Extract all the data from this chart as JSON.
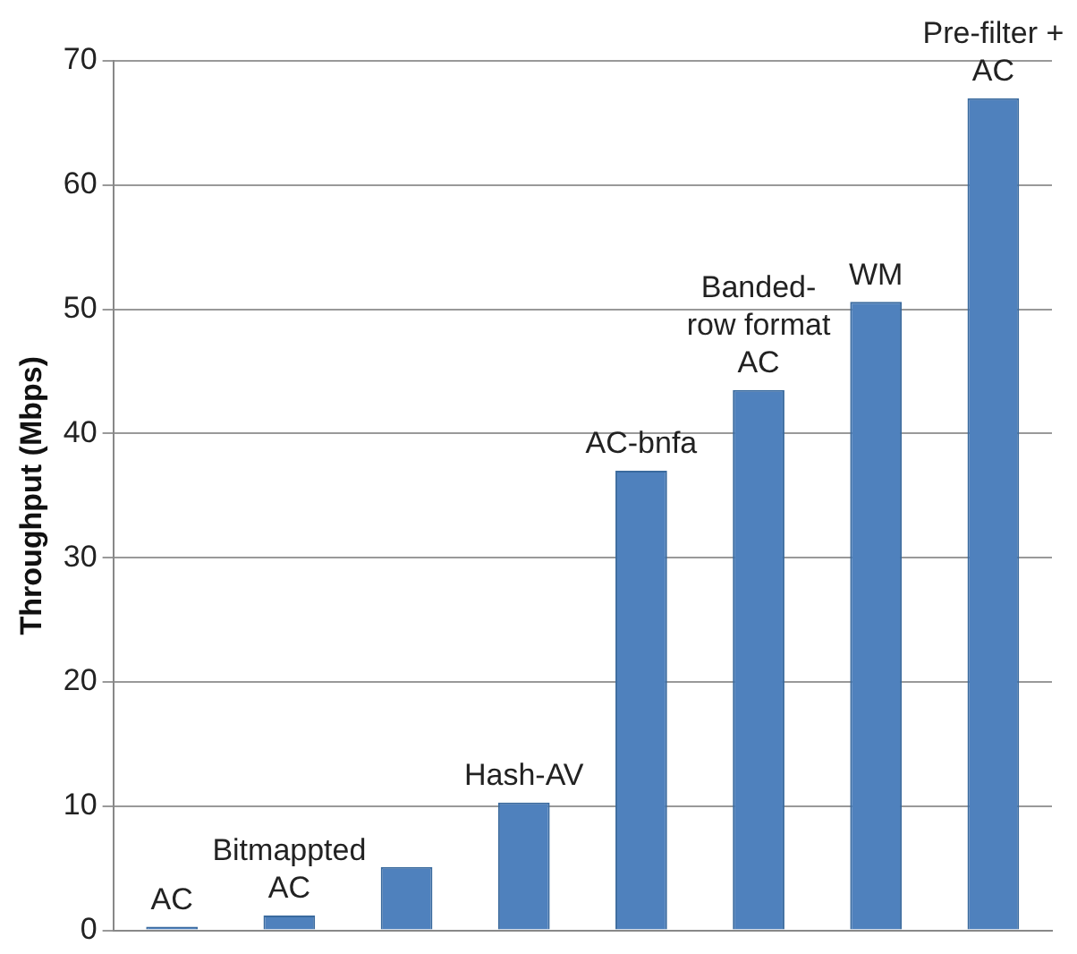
{
  "chart_data": {
    "type": "bar",
    "ylabel": "Throughput (Mbps)",
    "categories": [
      "AC",
      "Bitmappted AC",
      null,
      "Hash-AV",
      "AC-bnfa",
      "Banded-row format AC",
      "WM",
      "Pre-filter + AC"
    ],
    "values": [
      0.3,
      1.2,
      5.1,
      10.3,
      37,
      43.5,
      50.6,
      67
    ],
    "color": "#4f81bd",
    "ylim": [
      0,
      70
    ],
    "yticks": [
      0,
      10,
      20,
      30,
      40,
      50,
      60,
      70
    ],
    "grid": "y",
    "legend": false,
    "tick_labels": "y"
  }
}
